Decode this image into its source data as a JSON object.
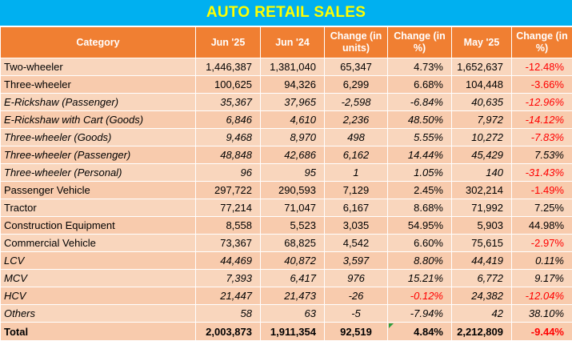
{
  "title": "AUTO RETAIL SALES",
  "headers": [
    "Category",
    "Jun '25",
    "Jun '24",
    "Change (in units)",
    "Change (in %)",
    "May '25",
    "Change (in %)"
  ],
  "rows": [
    {
      "category": "Two-wheeler",
      "italic": false,
      "jun25": "1,446,387",
      "jun24": "1,381,040",
      "change_units": "65,347",
      "change_pct": "4.73%",
      "may25": "1,652,637",
      "change_mom": "-12.48%",
      "neg_pct": false,
      "neg_mom": true
    },
    {
      "category": "Three-wheeler",
      "italic": false,
      "jun25": "100,625",
      "jun24": "94,326",
      "change_units": "6,299",
      "change_pct": "6.68%",
      "may25": "104,448",
      "change_mom": "-3.66%",
      "neg_pct": false,
      "neg_mom": true
    },
    {
      "category": "E-Rickshaw (Passenger)",
      "italic": true,
      "jun25": "35,367",
      "jun24": "37,965",
      "change_units": "-2,598",
      "change_pct": "-6.84%",
      "may25": "40,635",
      "change_mom": "-12.96%",
      "neg_pct": false,
      "neg_mom": true
    },
    {
      "category": "E-Rickshaw with Cart (Goods)",
      "italic": true,
      "jun25": "6,846",
      "jun24": "4,610",
      "change_units": "2,236",
      "change_pct": "48.50%",
      "may25": "7,972",
      "change_mom": "-14.12%",
      "neg_pct": false,
      "neg_mom": true
    },
    {
      "category": "Three-wheeler (Goods)",
      "italic": true,
      "jun25": "9,468",
      "jun24": "8,970",
      "change_units": "498",
      "change_pct": "5.55%",
      "may25": "10,272",
      "change_mom": "-7.83%",
      "neg_pct": false,
      "neg_mom": true
    },
    {
      "category": "Three-wheeler (Passenger)",
      "italic": true,
      "jun25": "48,848",
      "jun24": "42,686",
      "change_units": "6,162",
      "change_pct": "14.44%",
      "may25": "45,429",
      "change_mom": "7.53%",
      "neg_pct": false,
      "neg_mom": false
    },
    {
      "category": "Three-wheeler (Personal)",
      "italic": true,
      "jun25": "96",
      "jun24": "95",
      "change_units": "1",
      "change_pct": "1.05%",
      "may25": "140",
      "change_mom": "-31.43%",
      "neg_pct": false,
      "neg_mom": true
    },
    {
      "category": "Passenger Vehicle",
      "italic": false,
      "jun25": "297,722",
      "jun24": "290,593",
      "change_units": "7,129",
      "change_pct": "2.45%",
      "may25": "302,214",
      "change_mom": "-1.49%",
      "neg_pct": false,
      "neg_mom": true
    },
    {
      "category": "Tractor",
      "italic": false,
      "jun25": "77,214",
      "jun24": "71,047",
      "change_units": "6,167",
      "change_pct": "8.68%",
      "may25": "71,992",
      "change_mom": "7.25%",
      "neg_pct": false,
      "neg_mom": false
    },
    {
      "category": "Construction Equipment",
      "italic": false,
      "jun25": "8,558",
      "jun24": "5,523",
      "change_units": "3,035",
      "change_pct": "54.95%",
      "may25": "5,903",
      "change_mom": "44.98%",
      "neg_pct": false,
      "neg_mom": false
    },
    {
      "category": "Commercial Vehicle",
      "italic": false,
      "jun25": "73,367",
      "jun24": "68,825",
      "change_units": "4,542",
      "change_pct": "6.60%",
      "may25": "75,615",
      "change_mom": "-2.97%",
      "neg_pct": false,
      "neg_mom": true
    },
    {
      "category": "LCV",
      "italic": true,
      "jun25": "44,469",
      "jun24": "40,872",
      "change_units": "3,597",
      "change_pct": "8.80%",
      "may25": "44,419",
      "change_mom": "0.11%",
      "neg_pct": false,
      "neg_mom": false
    },
    {
      "category": "MCV",
      "italic": true,
      "jun25": "7,393",
      "jun24": "6,417",
      "change_units": "976",
      "change_pct": "15.21%",
      "may25": "6,772",
      "change_mom": "9.17%",
      "neg_pct": false,
      "neg_mom": false
    },
    {
      "category": "HCV",
      "italic": true,
      "jun25": "21,447",
      "jun24": "21,473",
      "change_units": "-26",
      "change_pct": "-0.12%",
      "may25": "24,382",
      "change_mom": "-12.04%",
      "neg_pct": true,
      "neg_mom": true
    },
    {
      "category": "Others",
      "italic": true,
      "jun25": "58",
      "jun24": "63",
      "change_units": "-5",
      "change_pct": "-7.94%",
      "may25": "42",
      "change_mom": "38.10%",
      "neg_pct": false,
      "neg_mom": false
    }
  ],
  "total": {
    "category": "Total",
    "jun25": "2,003,873",
    "jun24": "1,911,354",
    "change_units": "92,519",
    "change_pct": "4.84%",
    "may25": "2,212,809",
    "change_mom": "-9.44%",
    "neg_pct": false,
    "neg_mom": true
  },
  "colors": {
    "title_bg": "#00b0f0",
    "title_text": "#ffff00",
    "header_bg": "#f07f32",
    "row_bg": "#f8cbad",
    "negative": "#ff0000"
  }
}
